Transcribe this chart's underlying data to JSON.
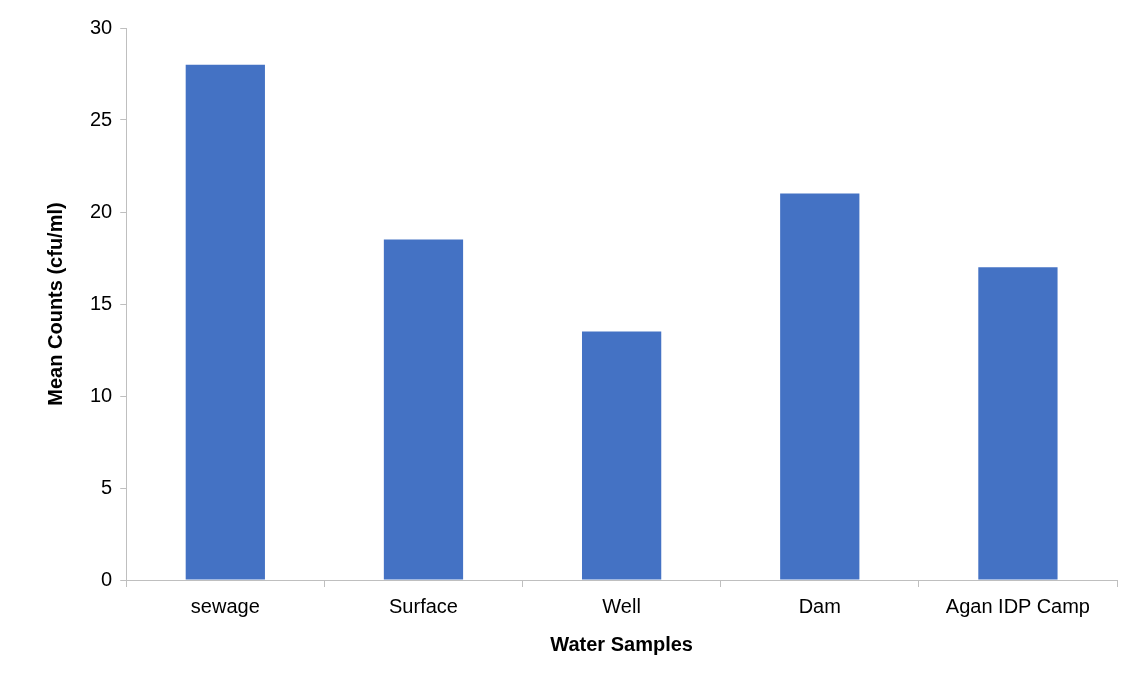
{
  "chart_data": {
    "type": "bar",
    "xlabel": "Water Samples",
    "ylabel": "Mean Counts (cfu/ml)",
    "categories": [
      "sewage",
      "Surface",
      "Well",
      "Dam",
      "Agan IDP Camp"
    ],
    "values": [
      28,
      18.5,
      13.5,
      21,
      17
    ],
    "color": "#4472c4",
    "ylim": [
      0,
      30
    ],
    "yticks": [
      0,
      5,
      10,
      15,
      20,
      25,
      30
    ]
  }
}
